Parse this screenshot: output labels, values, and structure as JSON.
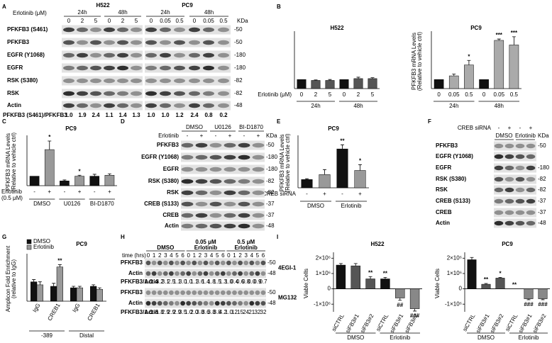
{
  "panel_letters": [
    "A",
    "B",
    "C",
    "D",
    "E",
    "F",
    "G",
    "H",
    "I"
  ],
  "chart_data": [
    {
      "type": "bar",
      "title": "H522",
      "categories": [
        "0",
        "2",
        "5",
        "0",
        "2",
        "5"
      ],
      "group_labels": [
        "24h",
        "48h"
      ],
      "xlabel": [
        "Erlotinib (μM)"
      ],
      "values": [
        1,
        0.9,
        0.9,
        1,
        1.1,
        1.1
      ],
      "errors": [
        null,
        0.05,
        0.1,
        null,
        0.15,
        0.1
      ],
      "colors": [
        "#111111",
        "#555555",
        "#555555",
        "#111111",
        "#555555",
        "#555555"
      ],
      "ylim": [
        0,
        6
      ]
    },
    {
      "type": "bar",
      "title": "PC9",
      "ylabel": [
        "PFKFB3 mRNA Levels",
        "(Relative to vehicle ctrl)"
      ],
      "categories": [
        "0",
        "0.05",
        "0.5",
        "0",
        "0.05",
        "0.5"
      ],
      "group_labels": [
        "24h",
        "48h"
      ],
      "values": [
        1,
        1.4,
        2.6,
        1,
        5.3,
        4.8
      ],
      "errors": [
        null,
        0.2,
        0.5,
        null,
        0.15,
        0.9
      ],
      "annotations": [
        null,
        null,
        "*",
        null,
        "***",
        "***"
      ],
      "colors": [
        "#111111",
        "#aaaaaa",
        "#aaaaaa",
        "#111111",
        "#aaaaaa",
        "#aaaaaa"
      ],
      "ylim": [
        0,
        6
      ]
    },
    {
      "type": "bar",
      "title": "PC9",
      "ylabel": [
        "PFKFB3 mRNA Levels",
        "(Relative to vehicle ctrl)"
      ],
      "categories": [
        "-",
        "+",
        "-",
        "+",
        "-",
        "+"
      ],
      "group_labels": [
        "DMSO",
        "U0126",
        "BI-D1870"
      ],
      "xlabel": [
        "Erlotinib",
        "(0.5 μM)"
      ],
      "values": [
        1,
        3.8,
        0.5,
        1.0,
        1.0,
        1.1
      ],
      "errors": [
        null,
        0.9,
        0.1,
        0.1,
        0.2,
        0.15
      ],
      "annotations": [
        null,
        "*",
        null,
        "*",
        null,
        null
      ],
      "colors": [
        "#111111",
        "#999999",
        "#111111",
        "#999999",
        "#111111",
        "#999999"
      ],
      "ylim": [
        0,
        5
      ]
    },
    {
      "type": "bar",
      "title": "PC9",
      "ylabel": [
        "PFKFB3 mRNA Levels",
        "(Relative to vehicle ctrl)"
      ],
      "categories": [
        "-",
        "+",
        "-",
        "+"
      ],
      "group_labels": [
        "DMSO",
        "Erlotinib"
      ],
      "xlabel": [
        "CREB siRNA"
      ],
      "values": [
        1,
        1.6,
        4.7,
        2.1
      ],
      "errors": [
        0.1,
        0.6,
        0.5,
        0.7
      ],
      "annotations": [
        null,
        null,
        "**",
        "*"
      ],
      "colors": [
        "#111111",
        "#999999",
        "#111111",
        "#999999"
      ],
      "ylim": [
        0,
        6
      ]
    },
    {
      "type": "bar",
      "title": "PC9",
      "ylabel": [
        "Amplicon Fold Enrichment",
        "(relative to IgG)"
      ],
      "categories": [
        "IgG",
        "CREB1",
        "IgG",
        "CREB1"
      ],
      "group_labels": [
        "-389",
        "Distal"
      ],
      "series": [
        {
          "name": "DMSO",
          "color": "#111111",
          "values": [
            1.3,
            1.0,
            0.9,
            1.0
          ],
          "errors": [
            0.15,
            0.2,
            0.1,
            0.1
          ]
        },
        {
          "name": "Erlotinib",
          "color": "#999999",
          "values": [
            1.1,
            2.3,
            0.9,
            0.8
          ],
          "errors": [
            0.2,
            0.15,
            0.1,
            0.1
          ],
          "annotations": [
            null,
            "**",
            null,
            null
          ]
        }
      ],
      "ylim": [
        0,
        3
      ]
    },
    {
      "type": "bar",
      "title": "H522",
      "ylabel": [
        "Viable Cells"
      ],
      "categories": [
        "siCTRL",
        "siFB3#1",
        "siFB3#2",
        "siCTRL",
        "siFB3#1",
        "siFB3#2"
      ],
      "group_labels": [
        "DMSO",
        "Erlotinib"
      ],
      "values": [
        1550000,
        1500000,
        650000,
        650000,
        -600000,
        -1300000
      ],
      "errors": [
        100000,
        150000,
        150000,
        100000,
        150000,
        150000
      ],
      "annotations": [
        null,
        null,
        "**",
        "**",
        "##",
        "###"
      ],
      "colors": [
        "#111111",
        "#555555",
        "#555555",
        "#111111",
        "#888888",
        "#888888"
      ],
      "ylim": [
        -1500000,
        2200000
      ],
      "yticks": [
        {
          "value": -1000000,
          "label": "-1×10⁶"
        },
        0,
        {
          "value": 1000000,
          "label": "1×10⁶"
        },
        {
          "value": 2000000,
          "label": "2×10⁶"
        }
      ]
    },
    {
      "type": "bar",
      "title": "PC9",
      "ylabel": [
        "Viable Cells"
      ],
      "categories": [
        "siCTRL",
        "siFB3#1",
        "siFB3#2",
        "siCTRL",
        "siFB3#1",
        "siFB3#2"
      ],
      "group_labels": [
        "DMSO",
        "Erlotinib"
      ],
      "values": [
        1900000,
        300000,
        700000,
        0,
        -650000,
        -650000
      ],
      "errors": [
        150000,
        50000,
        50000,
        null,
        60000,
        60000
      ],
      "annotations": [
        null,
        "**",
        "*",
        "**",
        "###",
        "###"
      ],
      "colors": [
        "#111111",
        "#555555",
        "#555555",
        "#111111",
        "#888888",
        "#888888"
      ],
      "ylim": [
        -1500000,
        2200000
      ],
      "yticks": [
        {
          "value": -1000000,
          "label": "-1×10⁶"
        },
        0,
        {
          "value": 1000000,
          "label": "1×10⁶"
        },
        {
          "value": 2000000,
          "label": "2×10⁶"
        }
      ]
    }
  ],
  "blot_a": {
    "cell_lines": [
      "H522",
      "PC9"
    ],
    "treatment": "Erlotinib (μM)",
    "times": [
      "24h",
      "48h",
      "24h",
      "48h"
    ],
    "doses": [
      "0",
      "2",
      "5",
      "0",
      "2",
      "5",
      "0",
      "0.05",
      "0.5",
      "0",
      "0.05",
      "0.5"
    ],
    "kda": "KDa",
    "rows": [
      {
        "label": "PFKFB3 (S461)",
        "marker": "-50"
      },
      {
        "label": "PFKFB3",
        "marker": "-50"
      },
      {
        "label": "EGFR (Y1068)",
        "marker": "-180"
      },
      {
        "label": "EGFR",
        "marker": "-180"
      },
      {
        "label": "RSK (S380)",
        "marker": "-82"
      },
      {
        "label": "RSK",
        "marker": "-82"
      },
      {
        "label": "Actin",
        "marker": "-48"
      }
    ],
    "ratio_label": "PFKFB3 (S461)/PFKFB3",
    "ratios": [
      "1.0",
      "1.9",
      "2.4",
      "1.1",
      "1.4",
      "1.3",
      "1.0",
      "1.0",
      "1.2",
      "2.4",
      "0.8",
      "0.2"
    ]
  },
  "blot_d": {
    "groups": [
      "DMSO",
      "U0126",
      "BI-D1870"
    ],
    "treatment": "Erlotinib",
    "signs": [
      "-",
      "+",
      "-",
      "+",
      "-",
      "+"
    ],
    "kda": "KDa",
    "rows": [
      {
        "label": "PFKFB3",
        "marker": "-50"
      },
      {
        "label": "EGFR (Y1068)",
        "marker": "-180"
      },
      {
        "label": "EGFR",
        "marker": "-180"
      },
      {
        "label": "RSK (S380)",
        "marker": "-82"
      },
      {
        "label": "RSK",
        "marker": "-82"
      },
      {
        "label": "CREB (S133)",
        "marker": "-37"
      },
      {
        "label": "CREB",
        "marker": "-37"
      },
      {
        "label": "Actin",
        "marker": "-48"
      }
    ]
  },
  "blot_f": {
    "treatment": "CREB siRNA",
    "signs": [
      "-",
      "+",
      "-",
      "+"
    ],
    "groups": [
      "DMSO",
      "Erlotinib"
    ],
    "kda": "KDa",
    "rows": [
      {
        "label": "PFKFB3",
        "marker": "-50"
      },
      {
        "label": "EGFR (Y1068)"
      },
      {
        "label": "EGFR",
        "marker": "-180"
      },
      {
        "label": "RSK (S380)",
        "marker": "-82"
      },
      {
        "label": "RSK",
        "marker": "-82"
      },
      {
        "label": "CREB (S133)",
        "marker": "-37"
      },
      {
        "label": "CREB",
        "marker": "-37"
      },
      {
        "label": "Actin",
        "marker": "-48"
      }
    ]
  },
  "blot_h": {
    "groups": [
      [
        "DMSO"
      ],
      [
        "0.05 μM",
        "Erlotinib"
      ],
      [
        "0.5 μM",
        "Erlotinib"
      ]
    ],
    "time_label": "time (hrs)",
    "times": [
      "0",
      "1",
      "2",
      "3",
      "4",
      "5",
      "6"
    ],
    "blocks": [
      {
        "treatment": "4EGI-1",
        "rows": [
          {
            "label": "PFKFB3",
            "marker": "-50"
          },
          {
            "label": "Actin",
            "marker": "-48"
          }
        ],
        "ratio_label": "PFKFB3/Actin",
        "ratios": [
          "1.0",
          "1.4",
          "3.2",
          "3.1",
          "2.5",
          "1.1",
          "3.0",
          "1.0",
          "1.1",
          "3.6",
          "1.4",
          "1.8",
          "1.5",
          "1.3",
          "1.0",
          "0.4",
          "0.6",
          "0.8",
          "0.0",
          "0.9",
          "0.7"
        ]
      },
      {
        "treatment": "MG132",
        "rows": [
          {
            "label": "PFKFB3",
            "marker": "-50"
          },
          {
            "label": "Actin",
            "marker": "-48"
          }
        ],
        "ratio_label": "PFKFB3/Actin",
        "ratios": [
          "1.0",
          "1.8",
          "1.8",
          "2.9",
          "2.9",
          "2.9",
          "3.5",
          "1.0",
          "2.0",
          "3.8",
          "3.6",
          "3.8",
          "3.8",
          "4.2",
          "1.0",
          "12",
          "15",
          "24",
          "21",
          "32",
          "32"
        ]
      }
    ]
  }
}
